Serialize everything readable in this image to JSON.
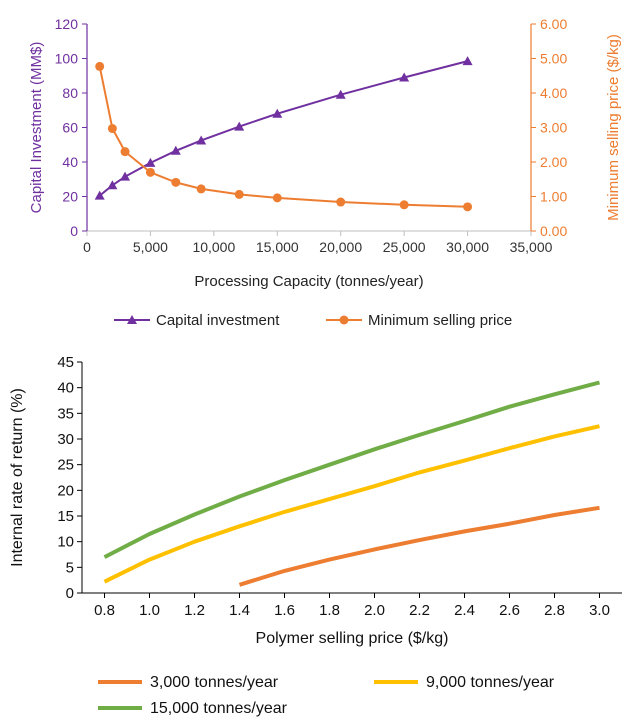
{
  "chart_data": [
    {
      "type": "line",
      "xlabel": "Processing Capacity (tonnes/year)",
      "ylabel_left": "Capital Investment (MM$)",
      "ylabel_right": "Minimum selling price ($/kg)",
      "xlim": [
        0,
        35000
      ],
      "ylim_left": [
        0,
        120
      ],
      "ylim_right": [
        0,
        6
      ],
      "x_ticks": [
        "0",
        "5,000",
        "10,000",
        "15,000",
        "20,000",
        "25,000",
        "30,000",
        "35,000"
      ],
      "y_left_ticks": [
        "0",
        "20",
        "40",
        "60",
        "80",
        "100",
        "120"
      ],
      "y_right_ticks": [
        "0.00",
        "1.00",
        "2.00",
        "3.00",
        "4.00",
        "5.00",
        "6.00"
      ],
      "grid": false,
      "legend_position": "bottom",
      "series": [
        {
          "name": "Capital investment",
          "axis": "left",
          "marker": "triangle",
          "color": "#7030a0",
          "x": [
            1000,
            2000,
            3000,
            5000,
            7000,
            9000,
            12000,
            15000,
            20000,
            25000,
            30000
          ],
          "y": [
            20.5,
            26.5,
            31.5,
            39.5,
            46.5,
            52.5,
            60.5,
            68,
            79,
            89,
            98.5
          ]
        },
        {
          "name": "Minimum selling price",
          "axis": "right",
          "marker": "circle",
          "color": "#ed7d31",
          "x": [
            1000,
            2000,
            3000,
            5000,
            7000,
            9000,
            12000,
            15000,
            20000,
            25000,
            30000
          ],
          "y": [
            4.77,
            2.97,
            2.3,
            1.7,
            1.41,
            1.22,
            1.06,
            0.96,
            0.84,
            0.76,
            0.7
          ]
        }
      ]
    },
    {
      "type": "line",
      "xlabel": "Polymer selling price ($/kg)",
      "ylabel": "Internal rate of return (%)",
      "xlim": [
        0.7,
        3.1
      ],
      "ylim": [
        0,
        45
      ],
      "x_ticks": [
        "0.8",
        "1.0",
        "1.2",
        "1.4",
        "1.6",
        "1.8",
        "2.0",
        "2.2",
        "2.4",
        "2.6",
        "2.8",
        "3.0"
      ],
      "y_ticks": [
        "0",
        "5",
        "10",
        "15",
        "20",
        "25",
        "30",
        "35",
        "40",
        "45"
      ],
      "grid": false,
      "legend_position": "bottom",
      "series": [
        {
          "name": "3,000 tonnes/year",
          "color": "#ed7d31",
          "x": [
            1.4,
            1.6,
            1.8,
            2.0,
            2.2,
            2.4,
            2.6,
            2.8,
            3.0
          ],
          "y": [
            1.6,
            4.3,
            6.5,
            8.5,
            10.3,
            12.0,
            13.5,
            15.2,
            16.6
          ]
        },
        {
          "name": "9,000 tonnes/year",
          "color": "#ffc000",
          "x": [
            0.8,
            1.0,
            1.2,
            1.4,
            1.6,
            1.8,
            2.0,
            2.2,
            2.4,
            2.6,
            2.8,
            3.0
          ],
          "y": [
            2.2,
            6.5,
            10.0,
            13.0,
            15.8,
            18.3,
            20.8,
            23.5,
            25.8,
            28.2,
            30.5,
            32.5
          ]
        },
        {
          "name": "15,000 tonnes/year",
          "color": "#70ad47",
          "x": [
            0.8,
            1.0,
            1.2,
            1.4,
            1.6,
            1.8,
            2.0,
            2.2,
            2.4,
            2.6,
            2.8,
            3.0
          ],
          "y": [
            7.0,
            11.5,
            15.3,
            18.8,
            22.0,
            25.0,
            28.0,
            30.8,
            33.5,
            36.3,
            38.7,
            41.0
          ]
        }
      ]
    }
  ]
}
